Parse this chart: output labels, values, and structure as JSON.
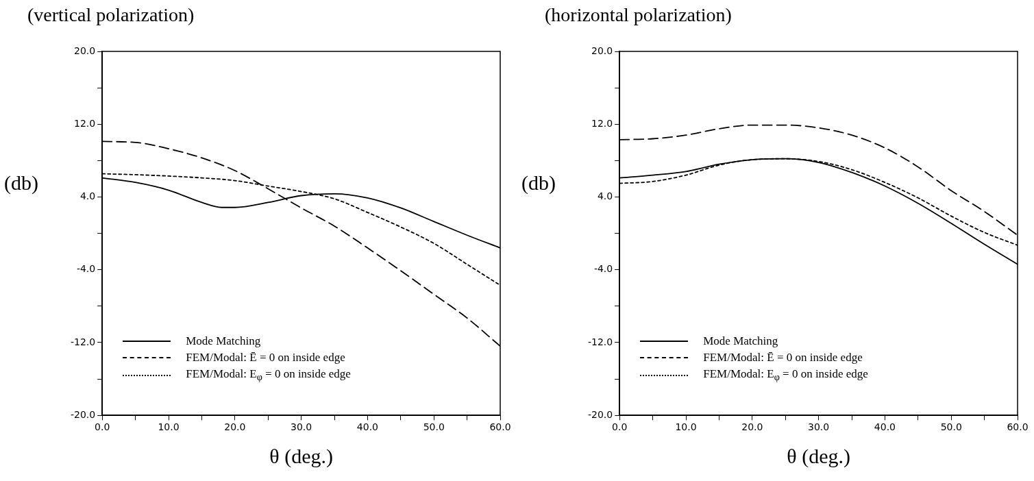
{
  "chart_data": [
    {
      "type": "line",
      "title": "(vertical polarization)",
      "xlabel": "θ (deg.)",
      "ylabel": "(db)",
      "legend": "bottom left",
      "grid": false,
      "marker": "none",
      "xlim": [
        0,
        60
      ],
      "xticks": [
        {
          "value": 0,
          "label": "0.0"
        },
        {
          "value": 5,
          "label": null
        },
        {
          "value": 10,
          "label": "10.0"
        },
        {
          "value": 15,
          "label": null
        },
        {
          "value": 20,
          "label": "20.0"
        },
        {
          "value": 25,
          "label": null
        },
        {
          "value": 30,
          "label": "30.0"
        },
        {
          "value": 35,
          "label": null
        },
        {
          "value": 40,
          "label": "40.0"
        },
        {
          "value": 45,
          "label": null
        },
        {
          "value": 50,
          "label": "50.0"
        },
        {
          "value": 55,
          "label": null
        },
        {
          "value": 60,
          "label": "60.0"
        }
      ],
      "ylim": [
        -20,
        20
      ],
      "yticks": [
        {
          "value": -20,
          "label": "-20.0"
        },
        {
          "value": -16,
          "label": null
        },
        {
          "value": -12,
          "label": "-12.0"
        },
        {
          "value": -8,
          "label": null
        },
        {
          "value": -4,
          "label": "-4.0"
        },
        {
          "value": 0,
          "label": null
        },
        {
          "value": 4,
          "label": "4.0"
        },
        {
          "value": 8,
          "label": null
        },
        {
          "value": 12,
          "label": "12.0"
        },
        {
          "value": 16,
          "label": null
        },
        {
          "value": 20,
          "label": "20.0"
        }
      ],
      "series": [
        {
          "name": "Mode Matching",
          "color": "#000000",
          "line_style": "solid",
          "x": [
            0,
            5,
            10,
            15,
            18,
            20,
            25,
            30,
            35,
            40,
            45,
            50,
            55,
            60
          ],
          "values": [
            6.1,
            5.6,
            4.75,
            3.4,
            2.85,
            2.85,
            3.4,
            4.15,
            4.35,
            3.9,
            2.8,
            1.3,
            -0.2,
            -1.6
          ]
        },
        {
          "name": "FEM/Modal: Ē = 0 on inside edge",
          "color": "#000000",
          "line_style": "dashed",
          "x": [
            0,
            5,
            10,
            15,
            20,
            25,
            30,
            35,
            40,
            45,
            50,
            55,
            60
          ],
          "values": [
            10.1,
            10.0,
            9.3,
            8.3,
            6.9,
            4.9,
            2.8,
            0.8,
            -1.6,
            -4.1,
            -6.7,
            -9.3,
            -12.4
          ]
        },
        {
          "name": "FEM/Modal: E$_{φ}$ = 0 on inside edge",
          "color": "#000000",
          "line_style": "dotted",
          "x": [
            0,
            5,
            10,
            15,
            20,
            25,
            30,
            35,
            40,
            45,
            50,
            55,
            60
          ],
          "values": [
            6.55,
            6.45,
            6.3,
            6.1,
            5.8,
            5.2,
            4.6,
            3.8,
            2.3,
            0.7,
            -1.1,
            -3.4,
            -5.7
          ]
        }
      ]
    },
    {
      "type": "line",
      "title": "(horizontal polarization)",
      "xlabel": "θ (deg.)",
      "ylabel": "(db)",
      "legend": "bottom left",
      "grid": false,
      "marker": "none",
      "xlim": [
        0,
        60
      ],
      "xticks": [
        {
          "value": 0,
          "label": "0.0"
        },
        {
          "value": 5,
          "label": null
        },
        {
          "value": 10,
          "label": "10.0"
        },
        {
          "value": 15,
          "label": null
        },
        {
          "value": 20,
          "label": "20.0"
        },
        {
          "value": 25,
          "label": null
        },
        {
          "value": 30,
          "label": "30.0"
        },
        {
          "value": 35,
          "label": null
        },
        {
          "value": 40,
          "label": "40.0"
        },
        {
          "value": 45,
          "label": null
        },
        {
          "value": 50,
          "label": "50.0"
        },
        {
          "value": 55,
          "label": null
        },
        {
          "value": 60,
          "label": "60.0"
        }
      ],
      "ylim": [
        -20,
        20
      ],
      "yticks": [
        {
          "value": -20,
          "label": "-20.0"
        },
        {
          "value": -16,
          "label": null
        },
        {
          "value": -12,
          "label": "-12.0"
        },
        {
          "value": -8,
          "label": null
        },
        {
          "value": -4,
          "label": "-4.0"
        },
        {
          "value": 0,
          "label": null
        },
        {
          "value": 4,
          "label": "4.0"
        },
        {
          "value": 8,
          "label": null
        },
        {
          "value": 12,
          "label": "12.0"
        },
        {
          "value": 16,
          "label": null
        },
        {
          "value": 20,
          "label": "20.0"
        }
      ],
      "series": [
        {
          "name": "Mode Matching",
          "color": "#000000",
          "line_style": "solid",
          "x": [
            0,
            5,
            10,
            15,
            20,
            25,
            30,
            35,
            40,
            45,
            50,
            55,
            60
          ],
          "values": [
            6.1,
            6.4,
            6.8,
            7.6,
            8.1,
            8.2,
            7.8,
            6.7,
            5.2,
            3.3,
            1.1,
            -1.2,
            -3.4
          ]
        },
        {
          "name": "FEM/Modal: Ē = 0 on inside edge",
          "color": "#000000",
          "line_style": "dashed",
          "x": [
            0,
            5,
            10,
            15,
            20,
            25,
            30,
            35,
            40,
            45,
            50,
            55,
            60
          ],
          "values": [
            10.3,
            10.4,
            10.8,
            11.5,
            11.9,
            11.9,
            11.6,
            10.8,
            9.4,
            7.3,
            4.7,
            2.4,
            -0.2
          ]
        },
        {
          "name": "FEM/Modal: E$_{φ}$ = 0 on inside edge",
          "color": "#000000",
          "line_style": "dotted",
          "x": [
            0,
            5,
            10,
            15,
            20,
            25,
            30,
            35,
            40,
            45,
            50,
            55,
            60
          ],
          "values": [
            5.5,
            5.7,
            6.4,
            7.5,
            8.1,
            8.2,
            7.9,
            7.0,
            5.6,
            3.9,
            1.9,
            0.1,
            -1.3
          ]
        }
      ]
    }
  ]
}
